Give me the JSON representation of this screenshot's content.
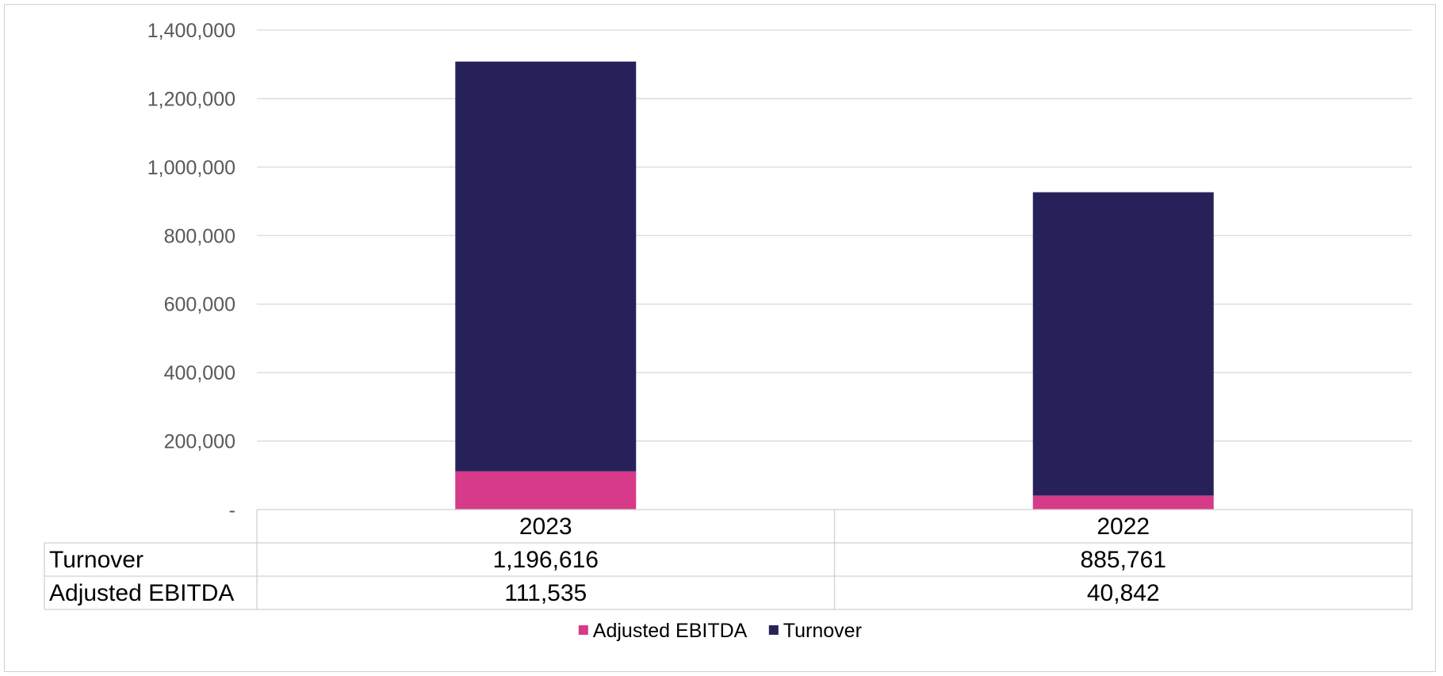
{
  "chart_data": {
    "type": "bar",
    "stacked": true,
    "categories": [
      "2023",
      "2022"
    ],
    "series": [
      {
        "name": "Adjusted EBITDA",
        "values": [
          111535,
          40842
        ],
        "color": "#d63a88",
        "label": "Adjusted EBITDA"
      },
      {
        "name": "Turnover",
        "values": [
          1196616,
          885761
        ],
        "color": "#262259",
        "label": "Turnover"
      }
    ],
    "data_table": {
      "rows": [
        {
          "label": "Turnover",
          "values": [
            "1,196,616",
            "885,761"
          ]
        },
        {
          "label": "Adjusted EBITDA",
          "values": [
            "111,535",
            "40,842"
          ]
        }
      ]
    },
    "ylim": [
      0,
      1400000
    ],
    "y_ticks": [
      {
        "value": 0,
        "label": "-"
      },
      {
        "value": 200000,
        "label": "200,000"
      },
      {
        "value": 400000,
        "label": "400,000"
      },
      {
        "value": 600000,
        "label": "600,000"
      },
      {
        "value": 800000,
        "label": "800,000"
      },
      {
        "value": 1000000,
        "label": "1,000,000"
      },
      {
        "value": 1200000,
        "label": "1,200,000"
      },
      {
        "value": 1400000,
        "label": "1,400,000"
      }
    ],
    "grid": true,
    "legend": "bottom"
  }
}
